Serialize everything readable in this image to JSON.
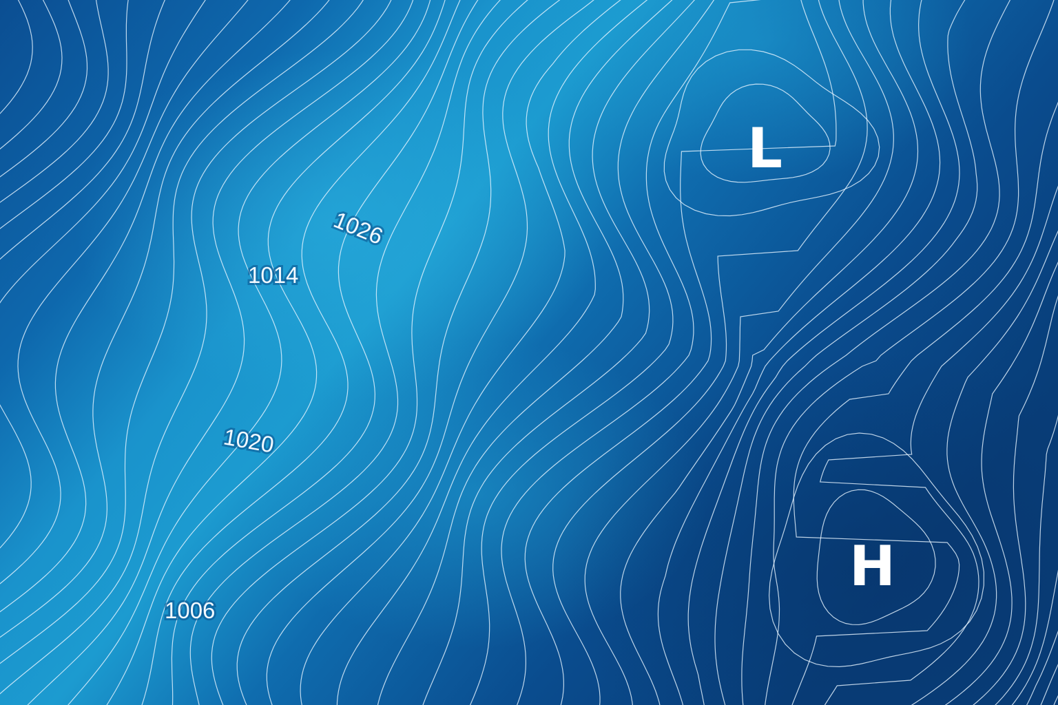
{
  "map": {
    "colors": {
      "background_deep": "#0b3f7a",
      "background_mid": "#0e62a8",
      "background_light": "#1d9fd0",
      "isobar_line": "#e6f4ff",
      "label_text": "#f3f9ff"
    },
    "isobar_labels": [
      {
        "text": "1026"
      },
      {
        "text": "1014"
      },
      {
        "text": "1020"
      },
      {
        "text": "1006"
      }
    ],
    "pressure_centers": {
      "low": {
        "text": "L",
        "kind": "low-pressure"
      },
      "high": {
        "text": "H",
        "kind": "high-pressure"
      }
    }
  }
}
